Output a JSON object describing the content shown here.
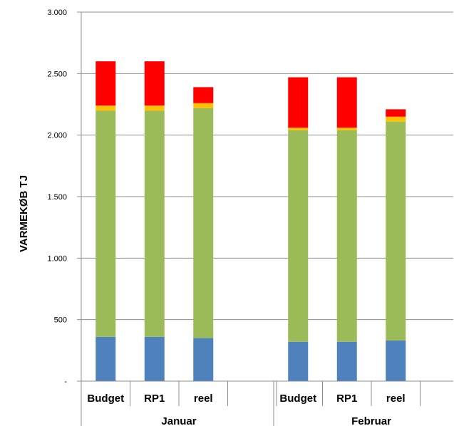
{
  "chart_data": {
    "type": "bar",
    "stacked": true,
    "ylabel": "VARMEKØB TJ",
    "ylim": [
      0,
      3000
    ],
    "y_ticks": [
      {
        "value": 0,
        "label": "-"
      },
      {
        "value": 500,
        "label": "500"
      },
      {
        "value": 1000,
        "label": "1.000"
      },
      {
        "value": 1500,
        "label": "1.500"
      },
      {
        "value": 2000,
        "label": "2.000"
      },
      {
        "value": 2500,
        "label": "2.500"
      },
      {
        "value": 3000,
        "label": "3.000"
      }
    ],
    "grid": true,
    "legend": "none",
    "groups": [
      {
        "label": "Januar",
        "categories": [
          "Budget",
          "RP1",
          "reel"
        ]
      },
      {
        "label": "Februar",
        "categories": [
          "Budget",
          "RP1",
          "reel"
        ]
      }
    ],
    "series": [
      {
        "color": "#4F81BD",
        "values": [
          360,
          360,
          350,
          320,
          320,
          330
        ]
      },
      {
        "color": "#9BBB59",
        "values": [
          1840,
          1840,
          1870,
          1720,
          1720,
          1780
        ]
      },
      {
        "color": "#FFC000",
        "values": [
          40,
          40,
          40,
          20,
          20,
          40
        ]
      },
      {
        "color": "#FF0000",
        "values": [
          360,
          360,
          130,
          410,
          410,
          60
        ]
      }
    ]
  }
}
